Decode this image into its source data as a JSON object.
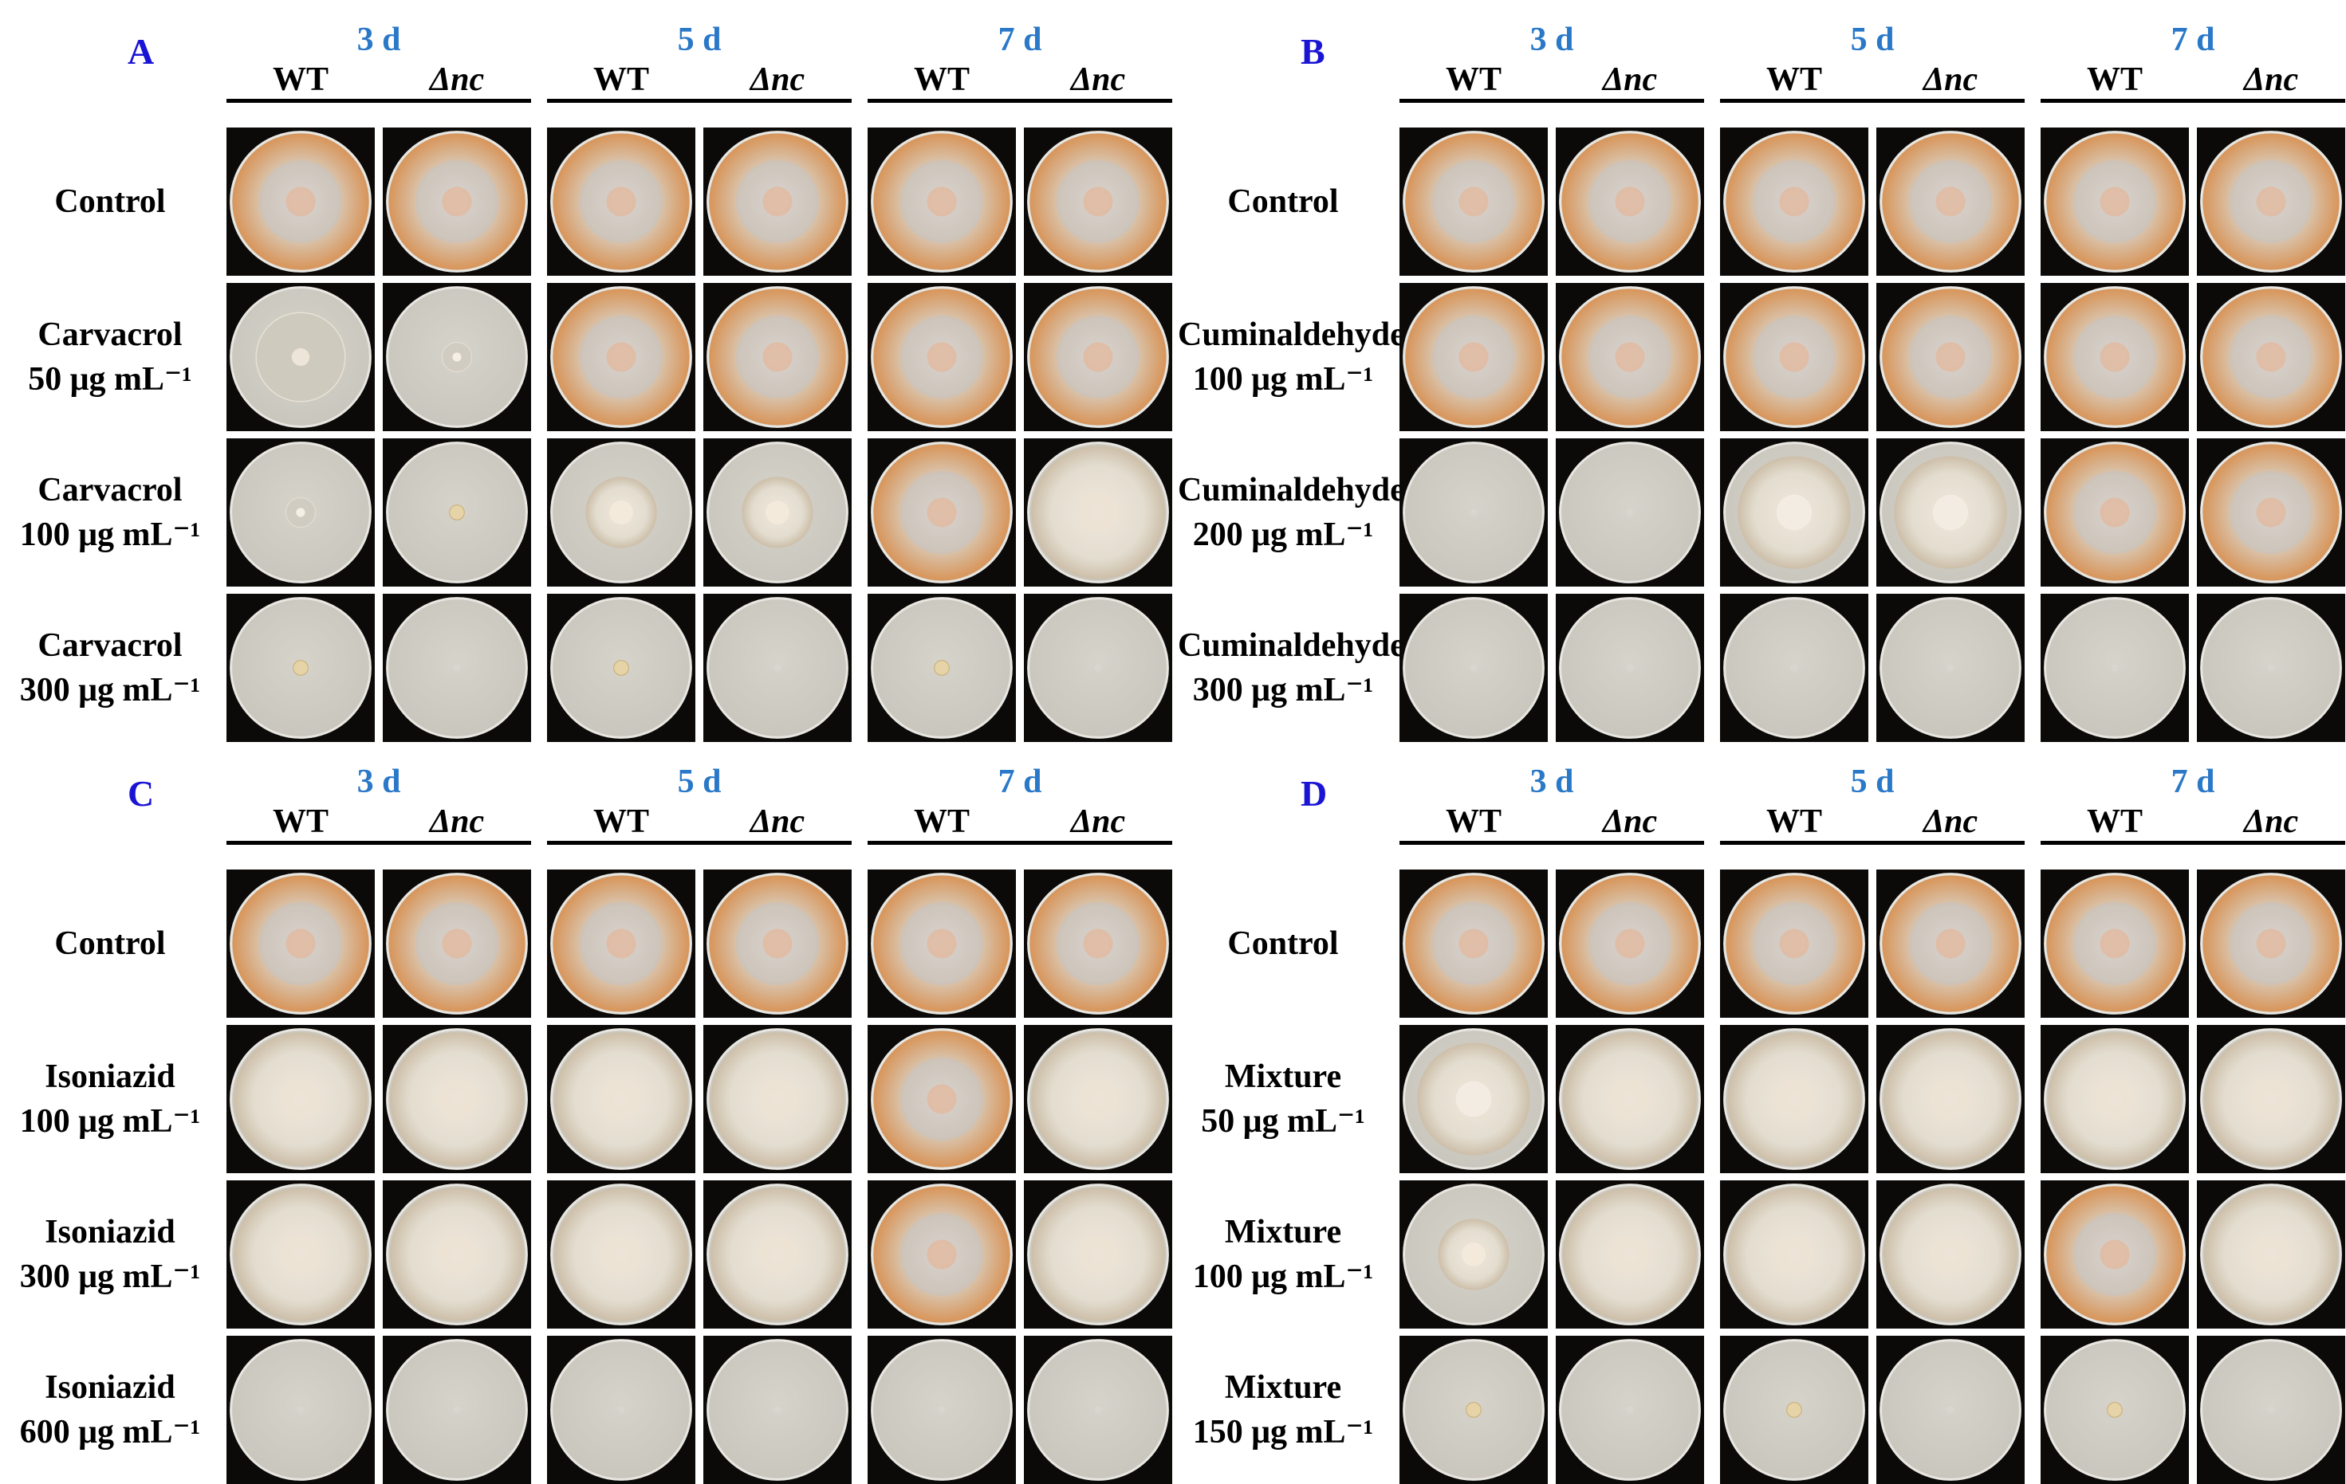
{
  "days": [
    "3 d",
    "5 d",
    "7 d"
  ],
  "strains": [
    "WT",
    "Δnc"
  ],
  "colors": {
    "panel_letter": "#1a14d4",
    "day_label": "#2a78c8",
    "plate_frame": "#0b0a08",
    "orange_mycelium": "#d8955a",
    "white_mycelium": "#e3ddd0",
    "empty_agar": "#c9c6bd"
  },
  "panels": [
    {
      "letter": "A",
      "rows": [
        {
          "label": "Control",
          "growth": [
            "full",
            "full",
            "full",
            "full",
            "full",
            "full"
          ]
        },
        {
          "label": "Carvacrol\n50 μg mL⁻¹",
          "growth": [
            "small-white",
            "tiny",
            "full",
            "full",
            "full",
            "full"
          ]
        },
        {
          "label": "Carvacrol\n100 μg mL⁻¹",
          "growth": [
            "tiny",
            "dot",
            "mid-white",
            "mid-white",
            "full",
            "full-pale"
          ]
        },
        {
          "label": "Carvacrol\n300 μg mL⁻¹",
          "growth": [
            "dot",
            "none",
            "dot",
            "none",
            "dot",
            "none"
          ]
        }
      ]
    },
    {
      "letter": "B",
      "rows": [
        {
          "label": "Control",
          "growth": [
            "full",
            "full",
            "full",
            "full",
            "full",
            "full"
          ]
        },
        {
          "label": "Cuminaldehyde\n100 μg mL⁻¹",
          "growth": [
            "full",
            "full",
            "full",
            "full",
            "full",
            "full"
          ]
        },
        {
          "label": "Cuminaldehyde\n200 μg mL⁻¹",
          "growth": [
            "none",
            "none",
            "large-white",
            "large-white",
            "full",
            "full"
          ]
        },
        {
          "label": "Cuminaldehyde\n300 μg mL⁻¹",
          "growth": [
            "none",
            "none",
            "none",
            "none",
            "none",
            "none"
          ]
        }
      ]
    },
    {
      "letter": "C",
      "rows": [
        {
          "label": "Control",
          "growth": [
            "full",
            "full",
            "full",
            "full",
            "full",
            "full"
          ]
        },
        {
          "label": "Isoniazid\n100 μg mL⁻¹",
          "growth": [
            "full-pale",
            "full-pale",
            "full-pale",
            "full-pale",
            "full",
            "full-pale"
          ]
        },
        {
          "label": "Isoniazid\n300 μg mL⁻¹",
          "growth": [
            "full-pale",
            "full-pale",
            "full-pale",
            "full-pale",
            "full",
            "full-pale"
          ]
        },
        {
          "label": "Isoniazid\n600 μg mL⁻¹",
          "growth": [
            "none",
            "none",
            "none",
            "none",
            "none",
            "none"
          ]
        }
      ]
    },
    {
      "letter": "D",
      "rows": [
        {
          "label": "Control",
          "growth": [
            "full",
            "full",
            "full",
            "full",
            "full",
            "full"
          ]
        },
        {
          "label": "Mixture\n50 μg mL⁻¹",
          "growth": [
            "large-white",
            "full-pale",
            "full-pale",
            "full-pale",
            "full-pale",
            "full-pale"
          ]
        },
        {
          "label": "Mixture\n100 μg mL⁻¹",
          "growth": [
            "mid-white",
            "full-pale",
            "full-pale",
            "full-pale",
            "full",
            "full-pale"
          ]
        },
        {
          "label": "Mixture\n150 μg mL⁻¹",
          "growth": [
            "dot",
            "none",
            "dot",
            "none",
            "dot",
            "none"
          ]
        }
      ]
    }
  ]
}
